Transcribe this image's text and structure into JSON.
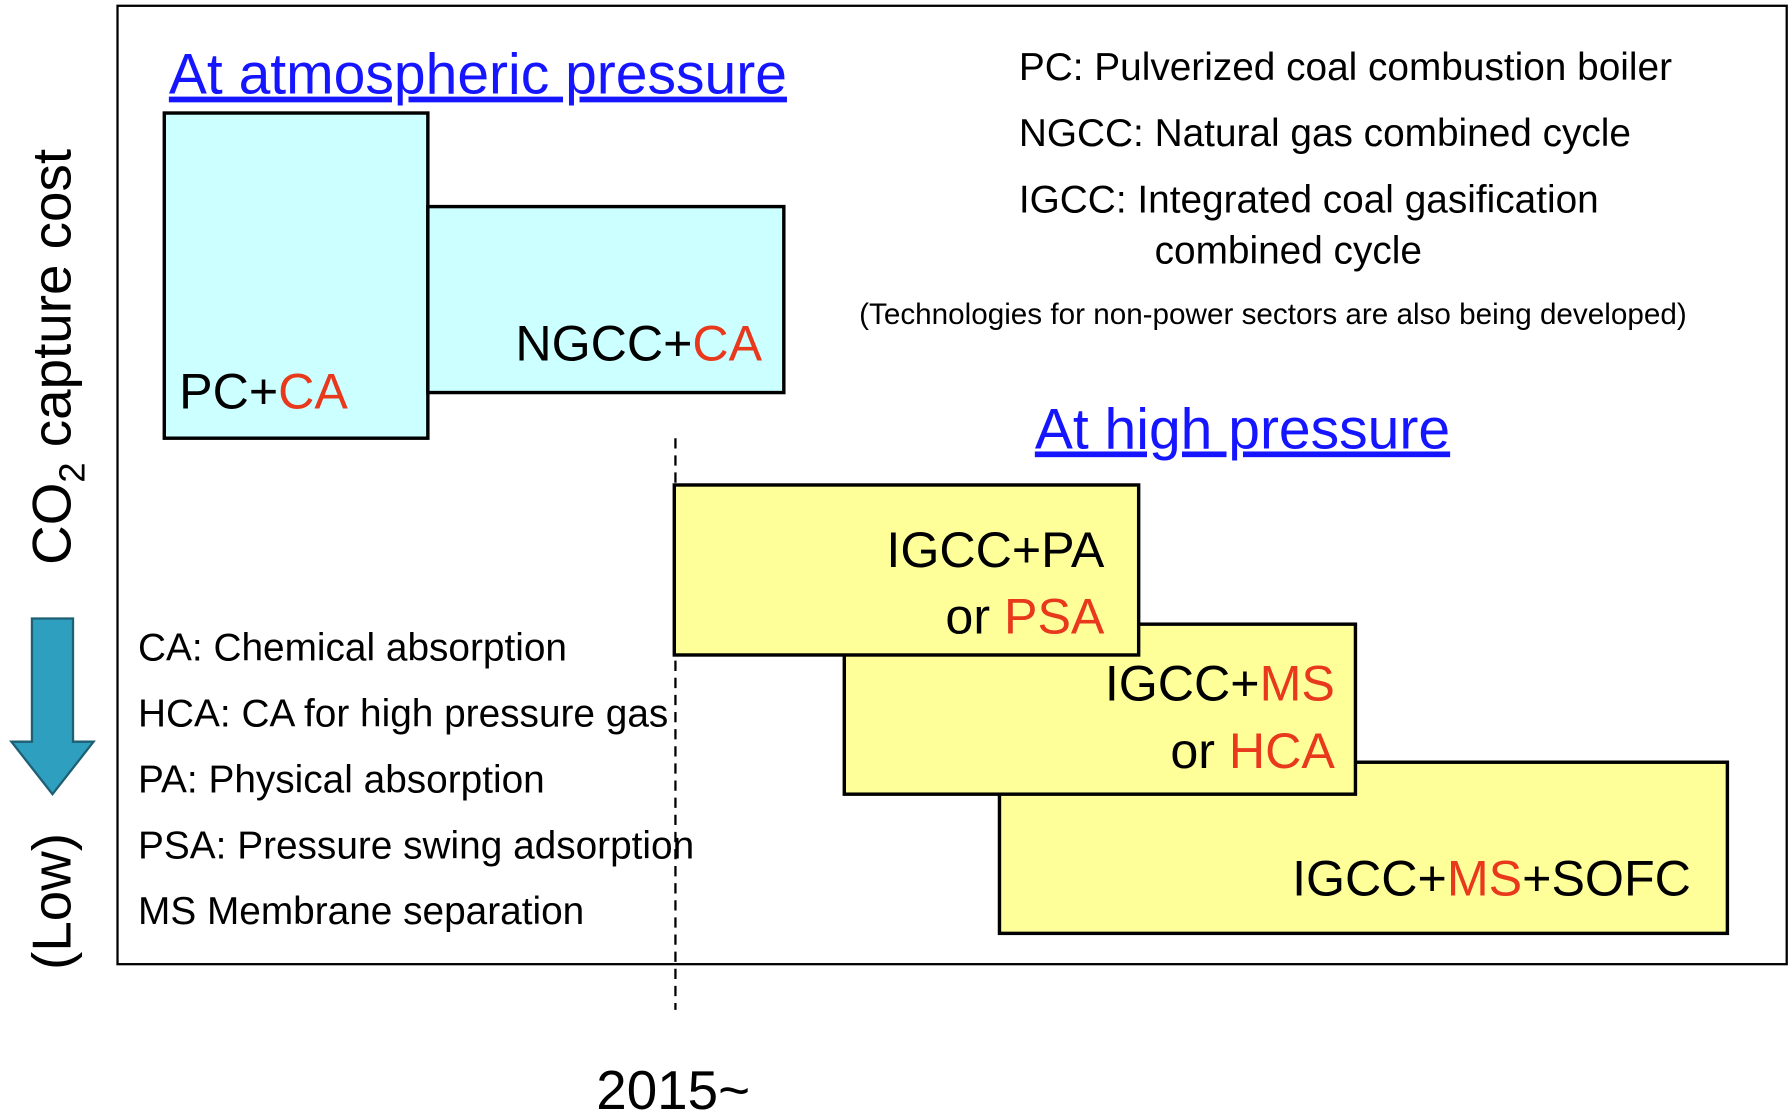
{
  "highlight_color": "#e8391d",
  "y_axis": {
    "label": [
      {
        "text": "CO"
      },
      {
        "text": "2",
        "subscript": true
      },
      {
        "text": " capture cost"
      }
    ],
    "low": "(Low)"
  },
  "x_axis": {
    "label": "2015~"
  },
  "sections": [
    {
      "title": "At atmospheric pressure"
    },
    {
      "title": "At high pressure"
    }
  ],
  "legend": [
    "PC: Pulverized coal combustion boiler",
    "NGCC: Natural gas combined cycle",
    "IGCC: Integrated coal gasification",
    "combined cycle"
  ],
  "note": "(Technologies for non-power sectors are also being developed)",
  "boxes": [
    {
      "fill": "#ccffff",
      "lines": [
        [
          {
            "text": "PC+"
          },
          {
            "text": "CA",
            "highlight": true
          }
        ]
      ]
    },
    {
      "fill": "#ccffff",
      "lines": [
        [
          {
            "text": "NGCC+"
          },
          {
            "text": "CA",
            "highlight": true
          }
        ]
      ]
    },
    {
      "fill": "#ffff99",
      "lines": [
        [
          {
            "text": "IGCC+PA"
          }
        ],
        [
          {
            "text": "or "
          },
          {
            "text": "PSA",
            "highlight": true
          }
        ]
      ]
    },
    {
      "fill": "#ffff99",
      "lines": [
        [
          {
            "text": "IGCC+"
          },
          {
            "text": "MS",
            "highlight": true
          }
        ],
        [
          {
            "text": "or "
          },
          {
            "text": "HCA",
            "highlight": true
          }
        ]
      ]
    },
    {
      "fill": "#ffff99",
      "lines": [
        [
          {
            "text": "IGCC+"
          },
          {
            "text": "MS",
            "highlight": true
          },
          {
            "text": "+SOFC"
          }
        ]
      ]
    }
  ],
  "definitions": [
    {
      "text": "CA: Chemical absorption",
      "highlight": true
    },
    {
      "text": "HCA: CA for high pressure gas",
      "highlight": true
    },
    {
      "text": "PA: Physical absorption",
      "highlight": false
    },
    {
      "text": "PSA: Pressure swing adsorption",
      "highlight": true
    },
    {
      "text": "MS Membrane separation",
      "highlight": true
    }
  ]
}
